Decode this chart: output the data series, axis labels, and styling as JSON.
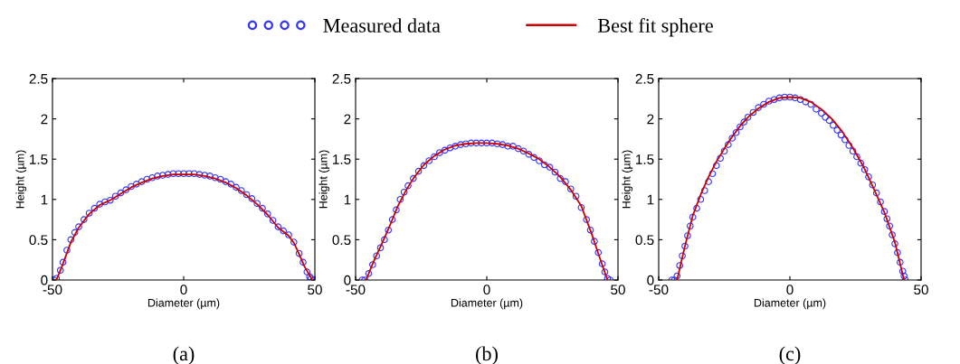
{
  "chart_data": [
    {
      "type": "scatter",
      "title": "(a)",
      "xlabel": "Diameter (µm)",
      "ylabel": "Height (µm)",
      "xlim": [
        -50,
        50
      ],
      "xticks": [
        -50,
        0,
        50
      ],
      "ylim": [
        0,
        2.5
      ],
      "yticks": [
        0,
        0.5,
        1,
        1.5,
        2,
        2.5
      ],
      "grid": false,
      "legend": "top",
      "series": [
        {
          "name": "Measured data",
          "marker": "circle",
          "color": "#3333ff",
          "x": [
            -49.5,
            -48.5,
            -47,
            -46,
            -44.5,
            -43,
            -41.5,
            -40,
            -38,
            -36,
            -34,
            -32,
            -30,
            -28,
            -26,
            -24,
            -22,
            -20,
            -18,
            -16,
            -14,
            -12,
            -10,
            -8,
            -6,
            -4,
            -2,
            0,
            2,
            4,
            6,
            8,
            10,
            12,
            14,
            16,
            18,
            20,
            22,
            24,
            26,
            28,
            30,
            32,
            34,
            36,
            38,
            40,
            42,
            44,
            45.5,
            47,
            48,
            48.5,
            49.5
          ],
          "values": [
            0,
            0.02,
            0.12,
            0.22,
            0.37,
            0.5,
            0.59,
            0.66,
            0.75,
            0.83,
            0.89,
            0.94,
            0.97,
            0.99,
            1.04,
            1.08,
            1.12,
            1.16,
            1.19,
            1.22,
            1.25,
            1.27,
            1.29,
            1.3,
            1.31,
            1.32,
            1.32,
            1.32,
            1.32,
            1.32,
            1.31,
            1.3,
            1.29,
            1.27,
            1.25,
            1.22,
            1.19,
            1.15,
            1.11,
            1.06,
            1.01,
            0.95,
            0.89,
            0.82,
            0.74,
            0.66,
            0.61,
            0.56,
            0.47,
            0.33,
            0.22,
            0.1,
            0.04,
            0.02,
            0
          ]
        },
        {
          "name": "Best fit sphere",
          "type": "line",
          "color": "#cc0000",
          "line_style": "solid",
          "x": [
            -48.5,
            -46,
            -43,
            -40,
            -36,
            -32,
            -28,
            -24,
            -20,
            -16,
            -12,
            -8,
            -4,
            0,
            4,
            8,
            12,
            16,
            20,
            24,
            28,
            32,
            36,
            40,
            42,
            44,
            46,
            49
          ],
          "values": [
            0,
            0.2,
            0.47,
            0.65,
            0.82,
            0.93,
            0.99,
            1.07,
            1.15,
            1.21,
            1.26,
            1.29,
            1.31,
            1.31,
            1.31,
            1.29,
            1.26,
            1.21,
            1.14,
            1.05,
            0.94,
            0.81,
            0.65,
            0.55,
            0.46,
            0.32,
            0.17,
            0
          ]
        }
      ]
    },
    {
      "type": "scatter",
      "title": "(b)",
      "xlabel": "Diameter (µm)",
      "ylabel": "Height (µm)",
      "xlim": [
        -50,
        50
      ],
      "xticks": [
        -50,
        0,
        50
      ],
      "ylim": [
        0,
        2.5
      ],
      "yticks": [
        0,
        0.5,
        1,
        1.5,
        2,
        2.5
      ],
      "grid": false,
      "series": [
        {
          "name": "Measured data",
          "marker": "circle",
          "color": "#3333ff",
          "x": [
            -47.5,
            -46.5,
            -45,
            -43.5,
            -42,
            -40.5,
            -39,
            -37.5,
            -36,
            -34.5,
            -33,
            -31.5,
            -30,
            -28,
            -26,
            -24,
            -22,
            -20,
            -18,
            -16,
            -14,
            -12,
            -10,
            -8,
            -6,
            -4,
            -2,
            0,
            2,
            4,
            6,
            8,
            10,
            12,
            14,
            16,
            18,
            20,
            22,
            24,
            26,
            28,
            30,
            32,
            34,
            36,
            38,
            39.5,
            41,
            42.5,
            44,
            45,
            46,
            47
          ],
          "values": [
            0,
            0,
            0.08,
            0.19,
            0.3,
            0.4,
            0.5,
            0.62,
            0.75,
            0.87,
            1.0,
            1.09,
            1.17,
            1.26,
            1.35,
            1.42,
            1.48,
            1.53,
            1.58,
            1.61,
            1.64,
            1.66,
            1.68,
            1.69,
            1.7,
            1.7,
            1.7,
            1.7,
            1.7,
            1.69,
            1.68,
            1.66,
            1.66,
            1.63,
            1.6,
            1.56,
            1.52,
            1.48,
            1.43,
            1.4,
            1.34,
            1.26,
            1.22,
            1.13,
            1.04,
            0.9,
            0.75,
            0.62,
            0.48,
            0.34,
            0.2,
            0.1,
            0.02,
            0
          ]
        },
        {
          "name": "Best fit sphere",
          "type": "line",
          "color": "#cc0000",
          "line_style": "solid",
          "x": [
            -46,
            -43,
            -40,
            -37,
            -34,
            -31,
            -28,
            -24,
            -20,
            -16,
            -12,
            -8,
            -4,
            0,
            4,
            8,
            12,
            16,
            20,
            24,
            28,
            32,
            36,
            40,
            43,
            46
          ],
          "values": [
            0,
            0.24,
            0.45,
            0.67,
            0.91,
            1.1,
            1.26,
            1.43,
            1.54,
            1.62,
            1.67,
            1.69,
            1.7,
            1.7,
            1.69,
            1.67,
            1.63,
            1.57,
            1.5,
            1.4,
            1.28,
            1.12,
            0.92,
            0.57,
            0.28,
            0
          ]
        }
      ]
    },
    {
      "type": "scatter",
      "title": "(c)",
      "xlabel": "Diameter (µm)",
      "ylabel": "Height (µm)",
      "xlim": [
        -50,
        50
      ],
      "xticks": [
        -50,
        0,
        50
      ],
      "ylim": [
        0,
        2.5
      ],
      "yticks": [
        0,
        0.5,
        1,
        1.5,
        2,
        2.5
      ],
      "grid": false,
      "series": [
        {
          "name": "Measured data",
          "marker": "circle",
          "color": "#3333ff",
          "x": [
            -45,
            -44,
            -43,
            -42,
            -41,
            -40,
            -39,
            -38,
            -37,
            -35.5,
            -34,
            -32.5,
            -31,
            -29.5,
            -28,
            -26.5,
            -25,
            -23.5,
            -22,
            -20.5,
            -19,
            -17.5,
            -16,
            -14,
            -12,
            -10,
            -8,
            -6,
            -4,
            -2,
            0,
            2,
            4,
            6,
            8,
            10,
            12,
            13.5,
            15,
            16.5,
            18,
            19.5,
            21,
            22.5,
            24,
            25.5,
            27,
            28.5,
            30,
            31.5,
            33,
            34.5,
            36,
            37,
            38,
            39,
            40,
            41,
            42,
            43,
            43.5,
            44
          ],
          "values": [
            0,
            0,
            0.05,
            0.18,
            0.3,
            0.42,
            0.55,
            0.67,
            0.78,
            0.89,
            1.0,
            1.11,
            1.22,
            1.32,
            1.42,
            1.51,
            1.6,
            1.68,
            1.76,
            1.83,
            1.9,
            1.96,
            2.02,
            2.08,
            2.14,
            2.18,
            2.22,
            2.24,
            2.26,
            2.27,
            2.27,
            2.26,
            2.24,
            2.21,
            2.18,
            2.12,
            2.07,
            2.02,
            1.98,
            1.92,
            1.86,
            1.8,
            1.74,
            1.67,
            1.6,
            1.53,
            1.45,
            1.37,
            1.28,
            1.18,
            1.08,
            0.97,
            0.85,
            0.76,
            0.67,
            0.56,
            0.45,
            0.34,
            0.22,
            0.11,
            0.05,
            0
          ]
        },
        {
          "name": "Best fit sphere",
          "type": "line",
          "color": "#cc0000",
          "line_style": "solid",
          "x": [
            -43,
            -40,
            -37,
            -34,
            -31,
            -28,
            -25,
            -22,
            -19,
            -16,
            -12,
            -8,
            -4,
            0,
            4,
            8,
            12,
            16,
            20,
            24,
            28,
            32,
            36,
            40,
            43.5
          ],
          "values": [
            0,
            0.42,
            0.8,
            1.06,
            1.28,
            1.47,
            1.63,
            1.78,
            1.91,
            2.02,
            2.13,
            2.21,
            2.26,
            2.27,
            2.26,
            2.21,
            2.12,
            2.0,
            1.84,
            1.64,
            1.41,
            1.13,
            0.84,
            0.47,
            0
          ]
        }
      ]
    }
  ]
}
